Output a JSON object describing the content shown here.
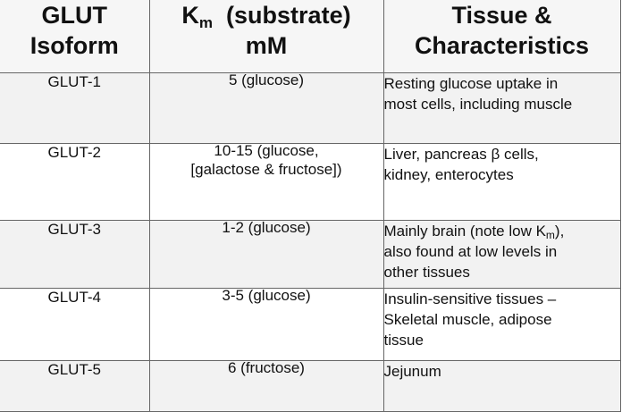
{
  "header": {
    "col1": [
      "GLUT",
      "Isoform"
    ],
    "col2": {
      "k": "K",
      "sub": "m",
      "rest": "  (substrate)",
      "line2": "mM"
    },
    "col3": [
      "Tissue &",
      "Characteristics"
    ]
  },
  "rows": [
    {
      "isoform": "GLUT-1",
      "km": [
        "5 (glucose)"
      ],
      "tissue": [
        "Resting glucose uptake in",
        "most cells, including muscle"
      ]
    },
    {
      "isoform": "GLUT-2",
      "km": [
        "10-15 (glucose,",
        "[galactose & fructose])"
      ],
      "tissue": [
        "Liver, pancreas β cells,",
        "kidney, enterocytes"
      ]
    },
    {
      "isoform": "GLUT-3",
      "km": [
        "1-2 (glucose)"
      ],
      "tissue": [
        "Mainly brain (note low K",
        "m",
        "),",
        "also found at low levels in",
        "other tissues"
      ]
    },
    {
      "isoform": "GLUT-4",
      "km": [
        "3-5 (glucose)"
      ],
      "tissue": [
        "Insulin-sensitive tissues –",
        "Skeletal muscle, adipose",
        "tissue"
      ]
    },
    {
      "isoform": "GLUT-5",
      "km": [
        "6 (fructose)"
      ],
      "tissue": [
        "Jejunum"
      ]
    }
  ]
}
